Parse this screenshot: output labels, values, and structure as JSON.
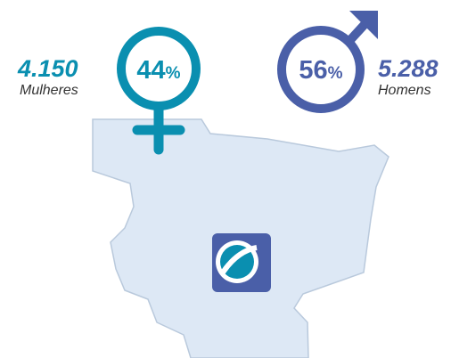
{
  "female": {
    "count": "4.150",
    "label": "Mulheres",
    "percent": "44",
    "unit": "%"
  },
  "male": {
    "count": "5.288",
    "label": "Homens",
    "percent": "56",
    "unit": "%"
  }
}
